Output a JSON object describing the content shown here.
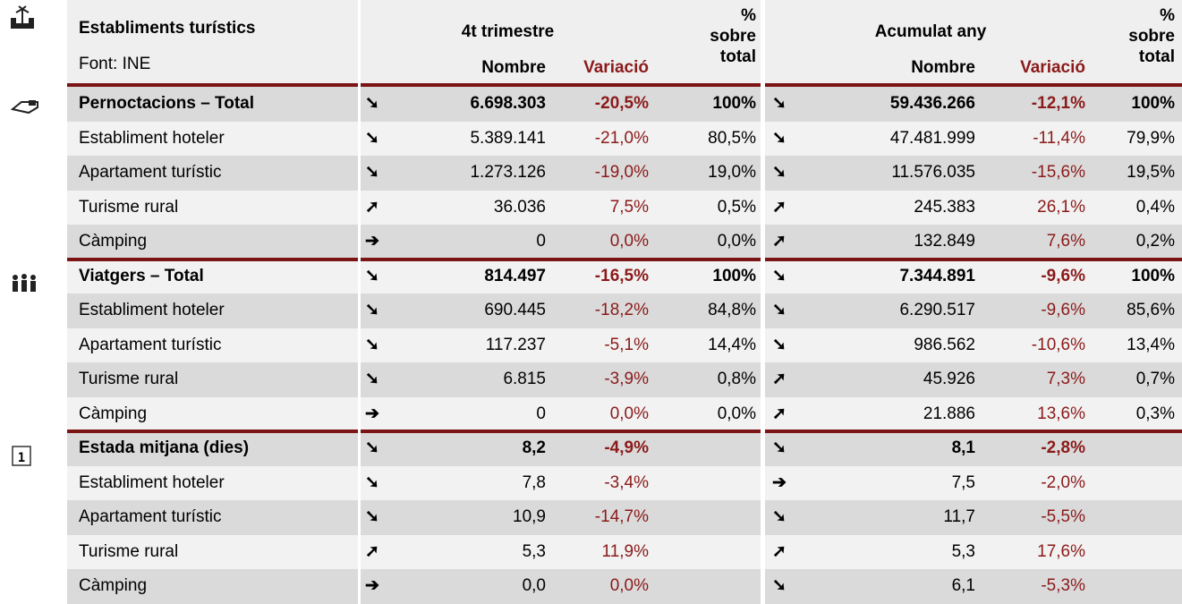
{
  "header": {
    "title": "Establiments turístics",
    "source": "Font: INE",
    "groups": [
      {
        "title": "4t  trimestre",
        "nombre": "Nombre",
        "variacio": "Variació",
        "pct": [
          "%",
          "sobre",
          "total"
        ]
      },
      {
        "title": "Acumulat any",
        "nombre": "Nombre",
        "variacio": "Variació",
        "pct": [
          "%",
          "sobre",
          "total"
        ]
      }
    ]
  },
  "rows": [
    {
      "label": "Pernoctacions – Total",
      "bold": true,
      "cells": [
        [
          "➘",
          "6.698.303",
          "-20,5%",
          "100%"
        ],
        [
          "➘",
          "59.436.266",
          "-12,1%",
          "100%"
        ]
      ]
    },
    {
      "label": "Establiment hoteler",
      "bold": false,
      "cells": [
        [
          "➘",
          "5.389.141",
          "-21,0%",
          "80,5%"
        ],
        [
          "➘",
          "47.481.999",
          "-11,4%",
          "79,9%"
        ]
      ]
    },
    {
      "label": "Apartament turístic",
      "bold": false,
      "cells": [
        [
          "➘",
          "1.273.126",
          "-19,0%",
          "19,0%"
        ],
        [
          "➘",
          "11.576.035",
          "-15,6%",
          "19,5%"
        ]
      ]
    },
    {
      "label": "Turisme rural",
      "bold": false,
      "cells": [
        [
          "➚",
          "36.036",
          "7,5%",
          "0,5%"
        ],
        [
          "➚",
          "245.383",
          "26,1%",
          "0,4%"
        ]
      ]
    },
    {
      "label": "Càmping",
      "bold": false,
      "cells": [
        [
          "➔",
          "0",
          "0,0%",
          "0,0%"
        ],
        [
          "➚",
          "132.849",
          "7,6%",
          "0,2%"
        ]
      ]
    },
    {
      "label": "Viatgers – Total",
      "bold": true,
      "cells": [
        [
          "➘",
          "814.497",
          "-16,5%",
          "100%"
        ],
        [
          "➘",
          "7.344.891",
          "-9,6%",
          "100%"
        ]
      ]
    },
    {
      "label": "Establiment hoteler",
      "bold": false,
      "cells": [
        [
          "➘",
          "690.445",
          "-18,2%",
          "84,8%"
        ],
        [
          "➘",
          "6.290.517",
          "-9,6%",
          "85,6%"
        ]
      ]
    },
    {
      "label": "Apartament turístic",
      "bold": false,
      "cells": [
        [
          "➘",
          "117.237",
          "-5,1%",
          "14,4%"
        ],
        [
          "➘",
          "986.562",
          "-10,6%",
          "13,4%"
        ]
      ]
    },
    {
      "label": "Turisme rural",
      "bold": false,
      "cells": [
        [
          "➘",
          "6.815",
          "-3,9%",
          "0,8%"
        ],
        [
          "➚",
          "45.926",
          "7,3%",
          "0,7%"
        ]
      ]
    },
    {
      "label": "Càmping",
      "bold": false,
      "cells": [
        [
          "➔",
          "0",
          "0,0%",
          "0,0%"
        ],
        [
          "➚",
          "21.886",
          "13,6%",
          "0,3%"
        ]
      ]
    },
    {
      "label": "Estada mitjana (dies)",
      "bold": true,
      "cells": [
        [
          "➘",
          "8,2",
          "-4,9%",
          null
        ],
        [
          "➘",
          "8,1",
          "-2,8%",
          null
        ]
      ]
    },
    {
      "label": "Establiment hoteler",
      "bold": false,
      "cells": [
        [
          "➘",
          "7,8",
          "-3,4%",
          null
        ],
        [
          "➔",
          "7,5",
          "-2,0%",
          null
        ]
      ]
    },
    {
      "label": "Apartament turístic",
      "bold": false,
      "cells": [
        [
          "➘",
          "10,9",
          "-14,7%",
          null
        ],
        [
          "➘",
          "11,7",
          "-5,5%",
          null
        ]
      ]
    },
    {
      "label": "Turisme rural",
      "bold": false,
      "cells": [
        [
          "➚",
          "5,3",
          "11,9%",
          null
        ],
        [
          "➚",
          "5,3",
          "17,6%",
          null
        ]
      ]
    },
    {
      "label": "Càmping",
      "bold": false,
      "cells": [
        [
          "➔",
          "0,0",
          "0,0%",
          null
        ],
        [
          "➘",
          "6,1",
          "-5,3%",
          null
        ]
      ]
    }
  ]
}
